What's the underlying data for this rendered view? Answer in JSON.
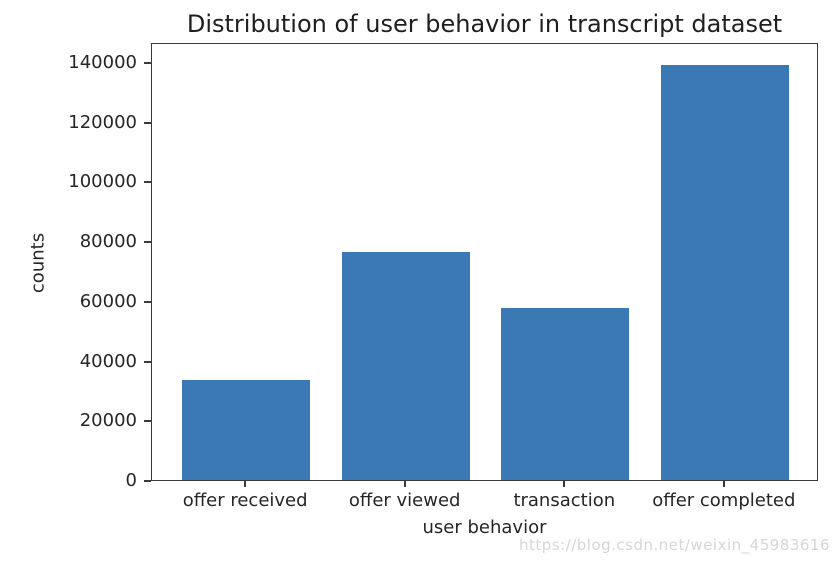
{
  "figure": {
    "watermark": "https://blog.csdn.net/weixin_45983616",
    "watermark_color": "#d6d6d6",
    "background_color": "#ffffff",
    "spine_color": "#3a3a3a",
    "text_color": "#262626"
  },
  "chart_data": {
    "type": "bar",
    "title": "Distribution of user behavior in transcript dataset",
    "xlabel": "user behavior",
    "ylabel": "counts",
    "categories": [
      "offer received",
      "offer viewed",
      "transaction",
      "offer completed"
    ],
    "values": [
      33600,
      76500,
      57700,
      139000
    ],
    "yticks": [
      0,
      20000,
      40000,
      60000,
      80000,
      100000,
      120000,
      140000
    ],
    "ylim": [
      0,
      146700
    ],
    "xlim": [
      -0.59,
      3.59
    ],
    "bar_width": 0.8,
    "bar_color": "#3b79b4",
    "grid": false,
    "legend_position": "none"
  }
}
